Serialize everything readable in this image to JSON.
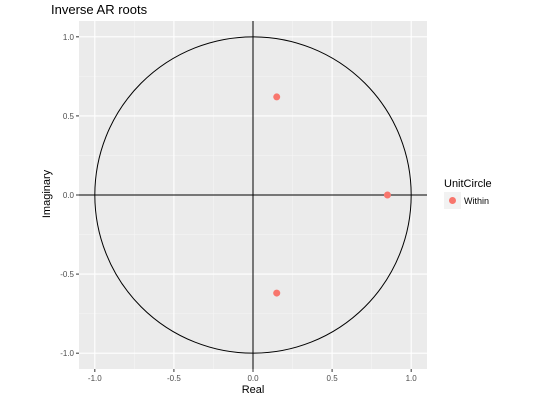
{
  "chart_data": {
    "type": "scatter",
    "title": "Inverse AR roots",
    "xlabel": "Real",
    "ylabel": "Imaginary",
    "xlim": [
      -1.1,
      1.1
    ],
    "ylim": [
      -1.1,
      1.1
    ],
    "x_ticks": [
      -1.0,
      -0.5,
      0.0,
      0.5,
      1.0
    ],
    "y_ticks": [
      -1.0,
      -0.5,
      0.0,
      0.5,
      1.0
    ],
    "x_tick_labels": [
      "-1.0",
      "-0.5",
      "0.0",
      "0.5",
      "1.0"
    ],
    "y_tick_labels": [
      "-1.0",
      "-0.5",
      "0.0",
      "0.5",
      "1.0"
    ],
    "grid": true,
    "unit_circle_radius": 1.0,
    "legend": {
      "title": "UnitCircle",
      "position": "right",
      "entries": [
        {
          "label": "Within",
          "color": "#f8766d"
        }
      ]
    },
    "series": [
      {
        "name": "Within",
        "color": "#f8766d",
        "points": [
          {
            "x": 0.15,
            "y": 0.62
          },
          {
            "x": 0.85,
            "y": 0.0
          },
          {
            "x": 0.15,
            "y": -0.62
          }
        ]
      }
    ],
    "colors": {
      "panel_background": "#ebebeb",
      "grid_major": "#ffffff",
      "grid_minor": "#f5f5f5",
      "axis_line": "#000000",
      "circle": "#000000"
    }
  }
}
